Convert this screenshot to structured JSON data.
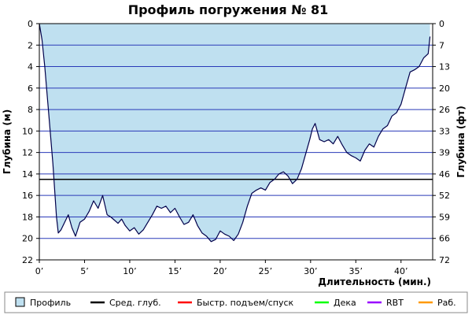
{
  "chart_data": {
    "type": "area",
    "title": "Профиль погружения № 81",
    "xlabel": "Длительность (мин.)",
    "ylabel": "Глубина (м)",
    "ylabel_right": "Глубина (фт)",
    "xlim": [
      0,
      43.5
    ],
    "ylim": [
      0,
      22
    ],
    "y_inverted": true,
    "grid": "horizontal",
    "x_ticks": [
      "0’",
      "5’",
      "10’",
      "15’",
      "20’",
      "25’",
      "30’",
      "35’",
      "40’"
    ],
    "x_tick_values": [
      0,
      5,
      10,
      15,
      20,
      25,
      30,
      35,
      40
    ],
    "y_ticks": [
      "0",
      "2",
      "4",
      "6",
      "8",
      "10",
      "12",
      "14",
      "16",
      "18",
      "20",
      "22"
    ],
    "y_tick_values": [
      0,
      2,
      4,
      6,
      8,
      10,
      12,
      14,
      16,
      18,
      20,
      22
    ],
    "y2_ticks": [
      "0",
      "7",
      "13",
      "20",
      "26",
      "33",
      "39",
      "46",
      "52",
      "59",
      "66",
      "72"
    ],
    "average_depth": 14.5,
    "colors": {
      "profile_fill": "#bfe0f0",
      "profile_line": "#00004b",
      "avg_line": "#000000",
      "grid": "#2a3ab8",
      "fast": "#ff0000",
      "deco": "#00ff00",
      "rbt": "#9900ff",
      "work": "#ff9900"
    },
    "series": [
      {
        "name": "Профиль",
        "x": [
          0,
          0.3,
          0.6,
          1.0,
          1.5,
          1.9,
          2.1,
          2.4,
          2.8,
          3.2,
          3.6,
          4.0,
          4.5,
          5.0,
          5.5,
          6.0,
          6.5,
          7.0,
          7.5,
          7.9,
          8.3,
          8.7,
          9.1,
          9.5,
          10.0,
          10.5,
          11.0,
          11.5,
          12.0,
          12.5,
          13.0,
          13.5,
          14.0,
          14.5,
          15.0,
          15.5,
          16.0,
          16.5,
          17.0,
          17.5,
          18.0,
          18.5,
          19.0,
          19.5,
          20.0,
          20.5,
          21.0,
          21.5,
          22.0,
          22.5,
          23.0,
          23.5,
          24.0,
          24.5,
          25.0,
          25.5,
          26.0,
          26.5,
          27.0,
          27.5,
          28.0,
          28.5,
          29.0,
          29.5,
          29.9,
          30.2,
          30.5,
          31.0,
          31.5,
          32.0,
          32.5,
          33.0,
          33.5,
          34.0,
          34.5,
          35.0,
          35.5,
          36.0,
          36.5,
          37.0,
          37.5,
          38.0,
          38.5,
          39.0,
          39.5,
          40.0,
          40.5,
          41.0,
          41.5,
          42.0,
          42.5,
          43.0,
          43.2
        ],
        "y": [
          0,
          1.5,
          4,
          8,
          13,
          18,
          19.5,
          19.2,
          18.5,
          17.8,
          19.0,
          19.8,
          18.5,
          18.2,
          17.5,
          16.5,
          17.2,
          16.0,
          17.8,
          18.0,
          18.3,
          18.6,
          18.2,
          18.8,
          19.3,
          19.0,
          19.6,
          19.2,
          18.5,
          17.8,
          17.0,
          17.2,
          17.0,
          17.6,
          17.2,
          18.0,
          18.7,
          18.5,
          17.8,
          18.8,
          19.5,
          19.8,
          20.3,
          20.1,
          19.3,
          19.6,
          19.8,
          20.2,
          19.6,
          18.5,
          17.0,
          15.8,
          15.5,
          15.3,
          15.5,
          14.8,
          14.5,
          14.0,
          13.8,
          14.2,
          14.9,
          14.5,
          13.5,
          12.0,
          10.8,
          9.8,
          9.3,
          10.8,
          11.0,
          10.8,
          11.2,
          10.5,
          11.3,
          12.0,
          12.3,
          12.5,
          12.8,
          11.8,
          11.2,
          11.5,
          10.5,
          9.8,
          9.5,
          8.6,
          8.3,
          7.5,
          6.0,
          4.5,
          4.3,
          4.0,
          3.2,
          2.8,
          1.2
        ]
      }
    ],
    "legend": [
      {
        "label": "Профиль",
        "kind": "box",
        "color": "#bfe0f0"
      },
      {
        "label": "Сред. глуб.",
        "kind": "line",
        "color": "#000000"
      },
      {
        "label": "Быстр. подъем/спуск",
        "kind": "line",
        "color": "#ff0000"
      },
      {
        "label": "Дека",
        "kind": "line",
        "color": "#00ff00"
      },
      {
        "label": "RBT",
        "kind": "line",
        "color": "#9900ff"
      },
      {
        "label": "Раб.",
        "kind": "line",
        "color": "#ff9900"
      }
    ]
  }
}
